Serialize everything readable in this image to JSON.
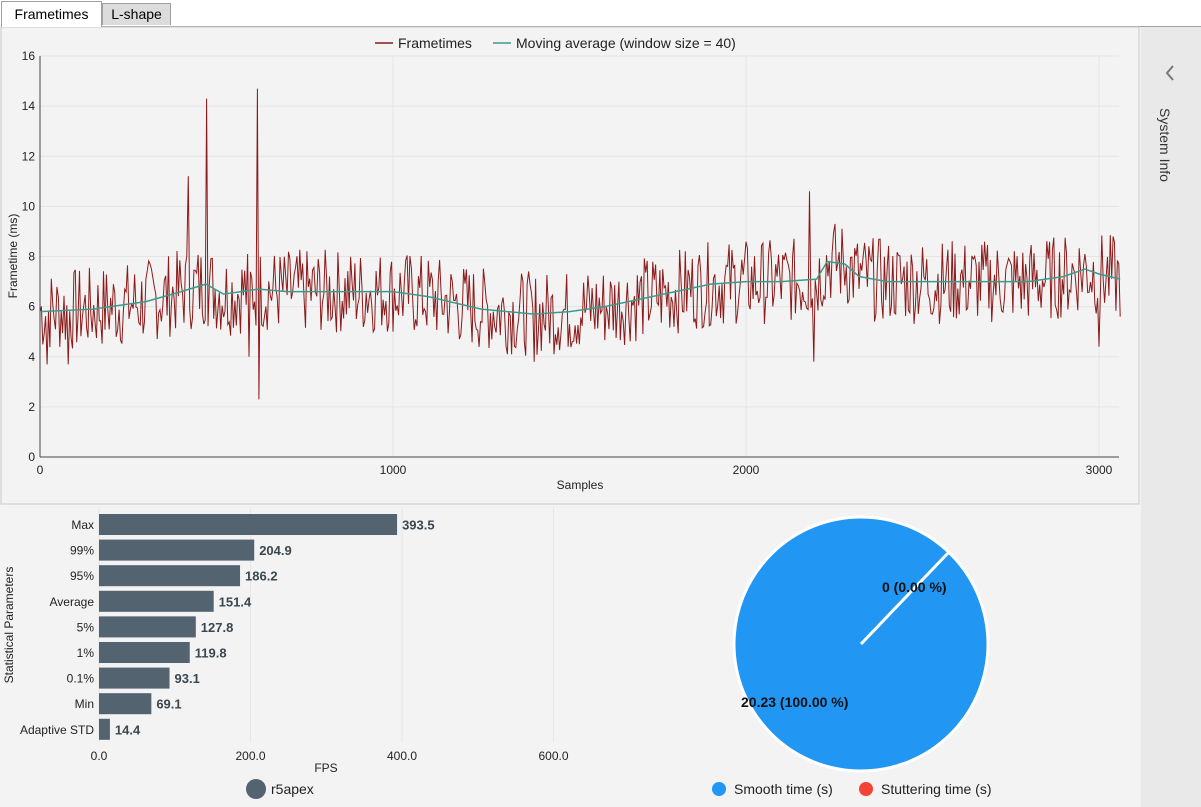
{
  "tabs": [
    {
      "label": "Frametimes",
      "active": true
    },
    {
      "label": "L-shape",
      "active": false
    }
  ],
  "side_panel": {
    "label": "System Info",
    "icon": "chevron-left-icon"
  },
  "colors": {
    "frametime_line": "#8b1a1a",
    "moving_average_line": "#3d9a8b",
    "bar_fill": "#536370",
    "smooth": "#2196f3",
    "stutter": "#f44336"
  },
  "chart_data": [
    {
      "type": "line",
      "xlabel": "Samples",
      "ylabel": "Frametime (ms)",
      "xlim": [
        0,
        3060
      ],
      "ylim": [
        0,
        16
      ],
      "x_ticks": [
        "0",
        "1000",
        "2000",
        "3000"
      ],
      "y_ticks": [
        "0",
        "2",
        "4",
        "6",
        "8",
        "10",
        "12",
        "14",
        "16"
      ],
      "grid": true,
      "legend_position": "top-center",
      "series": [
        {
          "name": "Frametimes",
          "summary_points": [
            [
              0,
              5.8
            ],
            [
              20,
              3.7
            ],
            [
              80,
              3.7
            ],
            [
              150,
              6.1
            ],
            [
              250,
              6.3
            ],
            [
              380,
              6.5
            ],
            [
              420,
              11.2
            ],
            [
              470,
              14.3
            ],
            [
              490,
              5.0
            ],
            [
              590,
              4.0
            ],
            [
              615,
              14.7
            ],
            [
              618,
              2.3
            ],
            [
              700,
              6.5
            ],
            [
              1000,
              6.5
            ],
            [
              1370,
              5.7
            ],
            [
              1400,
              3.8
            ],
            [
              1500,
              5.6
            ],
            [
              1700,
              6.5
            ],
            [
              1950,
              7.1
            ],
            [
              2180,
              10.6
            ],
            [
              2190,
              3.8
            ],
            [
              2230,
              7.8
            ],
            [
              2300,
              6.9
            ],
            [
              2600,
              7.0
            ],
            [
              2850,
              7.1
            ],
            [
              2960,
              7.4
            ],
            [
              3000,
              4.4
            ],
            [
              3060,
              7.1
            ]
          ]
        },
        {
          "name": "Moving average (window size = 40)",
          "points": [
            [
              0,
              5.8
            ],
            [
              150,
              5.9
            ],
            [
              300,
              6.2
            ],
            [
              400,
              6.6
            ],
            [
              470,
              6.9
            ],
            [
              520,
              6.5
            ],
            [
              620,
              6.7
            ],
            [
              700,
              6.6
            ],
            [
              800,
              6.6
            ],
            [
              1000,
              6.6
            ],
            [
              1100,
              6.4
            ],
            [
              1250,
              5.9
            ],
            [
              1400,
              5.7
            ],
            [
              1500,
              5.8
            ],
            [
              1600,
              6.0
            ],
            [
              1700,
              6.3
            ],
            [
              1800,
              6.6
            ],
            [
              1900,
              6.9
            ],
            [
              2000,
              7.0
            ],
            [
              2100,
              7.0
            ],
            [
              2200,
              7.1
            ],
            [
              2230,
              7.8
            ],
            [
              2280,
              7.7
            ],
            [
              2320,
              7.2
            ],
            [
              2400,
              7.0
            ],
            [
              2600,
              7.0
            ],
            [
              2800,
              7.0
            ],
            [
              2900,
              7.2
            ],
            [
              2960,
              7.5
            ],
            [
              3000,
              7.3
            ],
            [
              3060,
              7.1
            ]
          ]
        }
      ]
    },
    {
      "type": "bar",
      "orientation": "horizontal",
      "xlabel": "FPS",
      "ylabel": "Statistical Parameters",
      "xlim": [
        0,
        600
      ],
      "x_ticks": [
        "0.0",
        "200.0",
        "400.0",
        "600.0"
      ],
      "categories": [
        "Max",
        "99%",
        "95%",
        "Average",
        "5%",
        "1%",
        "0.1%",
        "Min",
        "Adaptive STD"
      ],
      "series": [
        {
          "name": "r5apex",
          "values": [
            393.5,
            204.9,
            186.2,
            151.4,
            127.8,
            119.8,
            93.1,
            69.1,
            14.4
          ]
        }
      ],
      "data_labels": [
        "393.5",
        "204.9",
        "186.2",
        "151.4",
        "127.8",
        "119.8",
        "93.1",
        "69.1",
        "14.4"
      ],
      "legend_position": "bottom-center"
    },
    {
      "type": "pie",
      "slices": [
        {
          "name": "Smooth time (s)",
          "value": 20.23,
          "label": "20.23 (100.00 %)"
        },
        {
          "name": "Stuttering time (s)",
          "value": 0,
          "label": "0 (0.00 %)"
        }
      ],
      "legend_position": "bottom-center"
    }
  ]
}
